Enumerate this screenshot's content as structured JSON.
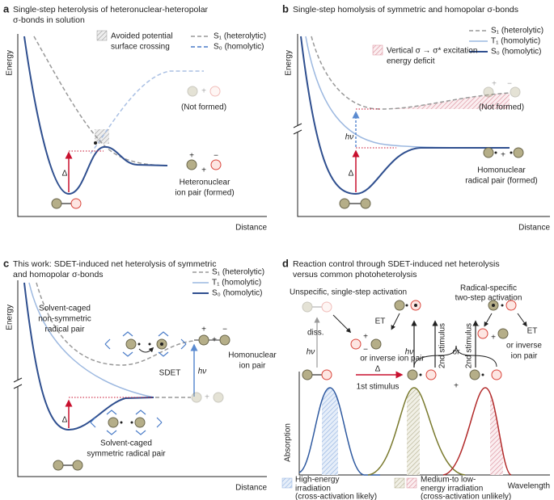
{
  "symbols": {
    "plus": "+",
    "minus": "−",
    "hv": "hν",
    "delta": "Δ"
  },
  "panels": [
    {
      "label": "a",
      "title": [
        "Single-step heterolysis of heteronuclear-heteropolar",
        "σ-bonds in solution"
      ],
      "y_axis": "Energy",
      "x_axis": "Distance",
      "legend": {
        "crossing": [
          "Avoided potential",
          "surface crossing"
        ],
        "s1": "S₁ (heterolytic)",
        "s0": "S₀ (homolytic)"
      },
      "labels": {
        "not_formed": "(Not formed)",
        "product": [
          "Heteronuclear",
          "ion pair (formed)"
        ]
      }
    },
    {
      "label": "b",
      "title": [
        "Single-step homolysis of symmetric and homopolar σ-bonds"
      ],
      "y_axis": "Energy",
      "x_axis": "Distance",
      "legend": {
        "s1": "S₁ (heterolytic)",
        "t1": "T₁ (homolytic)",
        "s0": "S₀ (homolytic)",
        "deficit": [
          "Vertical σ → σ* excitation",
          "energy deficit"
        ]
      },
      "labels": {
        "not_formed": "(Not formed)",
        "product": [
          "Homonuclear",
          "radical pair (formed)"
        ]
      }
    },
    {
      "label": "c",
      "title": [
        "This work: SDET-induced net heterolysis of symmetric",
        "and homopolar σ-bonds"
      ],
      "y_axis": "Energy",
      "x_axis": "Distance",
      "legend": {
        "s1": "S₁ (heterolytic)",
        "t1": "T₁ (homolytic)",
        "s0": "S₀ (homolytic)"
      },
      "labels": {
        "caged_nonsym": [
          "Solvent-caged",
          "non-symmetric",
          "radical pair"
        ],
        "product": [
          "Homonuclear",
          "ion pair"
        ],
        "sdet": "SDET",
        "caged_sym": [
          "Solvent-caged",
          "symmetric radical pair"
        ]
      }
    },
    {
      "label": "d",
      "title": [
        "Reaction control through SDET-induced net heterolysis",
        "versus common photoheterolysis"
      ],
      "y_axis": "Absorption",
      "x_axis": "Wavelength",
      "labels": {
        "unspecific": "Unspecific, single-step activation",
        "radical": [
          "Radical-specific",
          "two-step activation"
        ],
        "diss": "diss.",
        "et": "ET",
        "inverse1": "or inverse ion pair",
        "inverse2": [
          "or inverse",
          "ion pair"
        ],
        "stimulus2": "2nd stimulus",
        "or": "or",
        "stimulus1": "1st stimulus"
      },
      "legend": {
        "high": [
          "High-energy",
          "irradiation",
          "(cross-activation likely)"
        ],
        "medium": [
          "Medium-to low-",
          "energy irradiation",
          "(cross-activation unlikely)"
        ]
      }
    }
  ]
}
